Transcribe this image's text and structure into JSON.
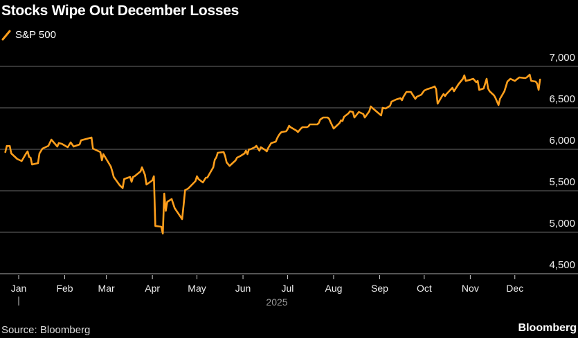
{
  "header": {
    "title": "Stocks Wipe Out December Losses"
  },
  "footer": {
    "source": "Source: Bloomberg",
    "brand": "Bloomberg"
  },
  "colors": {
    "series": "#FF9F1C",
    "grid": "#555555",
    "background": "#000000"
  },
  "chart_data": {
    "type": "line",
    "title": "Stocks Wipe Out December Losses",
    "legend": {
      "entries": [
        "S&P 500"
      ],
      "placement": "top-left"
    },
    "ylim": [
      4500,
      7000
    ],
    "yticks": [
      4500,
      5000,
      5500,
      6000,
      6500,
      7000
    ],
    "ytick_labels": [
      "4,500",
      "5,000",
      "5,500",
      "6,000",
      "6,500",
      "7,000"
    ],
    "xtick_labels": [
      "Jan",
      "Feb",
      "Mar",
      "Apr",
      "May",
      "Jun",
      "Jul",
      "Aug",
      "Sep",
      "Oct",
      "Nov",
      "Dec"
    ],
    "xticks": [
      "2025-01-01",
      "2025-02-01",
      "2025-03-01",
      "2025-04-01",
      "2025-05-01",
      "2025-06-01",
      "2025-07-01",
      "2025-08-01",
      "2025-09-01",
      "2025-10-01",
      "2025-11-01",
      "2025-12-01"
    ],
    "year_label": "2025",
    "grid": true,
    "series": [
      {
        "name": "S&P 500",
        "points": [
          [
            "2024-12-23",
            5967
          ],
          [
            "2024-12-24",
            6040
          ],
          [
            "2024-12-26",
            6040
          ],
          [
            "2024-12-27",
            5950
          ],
          [
            "2024-12-31",
            5883
          ],
          [
            "2025-01-03",
            5858
          ],
          [
            "2025-01-06",
            5950
          ],
          [
            "2025-01-07",
            5975
          ],
          [
            "2025-01-08",
            5908
          ],
          [
            "2025-01-09",
            5900
          ],
          [
            "2025-01-10",
            5817
          ],
          [
            "2025-01-14",
            5833
          ],
          [
            "2025-01-15",
            5950
          ],
          [
            "2025-01-17",
            6008
          ],
          [
            "2025-01-21",
            6042
          ],
          [
            "2025-01-23",
            6117
          ],
          [
            "2025-01-27",
            6033
          ],
          [
            "2025-01-28",
            6075
          ],
          [
            "2025-01-30",
            6067
          ],
          [
            "2025-02-03",
            6025
          ],
          [
            "2025-02-05",
            6083
          ],
          [
            "2025-02-07",
            6033
          ],
          [
            "2025-02-11",
            6058
          ],
          [
            "2025-02-12",
            6108
          ],
          [
            "2025-02-19",
            6142
          ],
          [
            "2025-02-20",
            6008
          ],
          [
            "2025-02-25",
            5967
          ],
          [
            "2025-02-26",
            5867
          ],
          [
            "2025-02-27",
            5942
          ],
          [
            "2025-03-04",
            5792
          ],
          [
            "2025-03-05",
            5733
          ],
          [
            "2025-03-06",
            5667
          ],
          [
            "2025-03-10",
            5567
          ],
          [
            "2025-03-12",
            5533
          ],
          [
            "2025-03-13",
            5642
          ],
          [
            "2025-03-17",
            5667
          ],
          [
            "2025-03-18",
            5608
          ],
          [
            "2025-03-19",
            5667
          ],
          [
            "2025-03-20",
            5675
          ],
          [
            "2025-03-24",
            5733
          ],
          [
            "2025-03-25",
            5783
          ],
          [
            "2025-03-27",
            5692
          ],
          [
            "2025-03-28",
            5575
          ],
          [
            "2025-04-01",
            5625
          ],
          [
            "2025-04-02",
            5675
          ],
          [
            "2025-04-03",
            5075
          ],
          [
            "2025-04-07",
            5067
          ],
          [
            "2025-04-08",
            4983
          ],
          [
            "2025-04-09",
            5467
          ],
          [
            "2025-04-10",
            5258
          ],
          [
            "2025-04-11",
            5367
          ],
          [
            "2025-04-14",
            5400
          ],
          [
            "2025-04-16",
            5292
          ],
          [
            "2025-04-21",
            5158
          ],
          [
            "2025-04-22",
            5325
          ],
          [
            "2025-04-23",
            5508
          ],
          [
            "2025-04-25",
            5525
          ],
          [
            "2025-04-30",
            5617
          ],
          [
            "2025-05-01",
            5675
          ],
          [
            "2025-05-02",
            5642
          ],
          [
            "2025-05-05",
            5600
          ],
          [
            "2025-05-07",
            5658
          ],
          [
            "2025-05-08",
            5658
          ],
          [
            "2025-05-12",
            5783
          ],
          [
            "2025-05-13",
            5875
          ],
          [
            "2025-05-14",
            5900
          ],
          [
            "2025-05-15",
            5958
          ],
          [
            "2025-05-19",
            5967
          ],
          [
            "2025-05-20",
            5917
          ],
          [
            "2025-05-21",
            5842
          ],
          [
            "2025-05-23",
            5800
          ],
          [
            "2025-05-27",
            5867
          ],
          [
            "2025-05-28",
            5900
          ],
          [
            "2025-05-30",
            5917
          ],
          [
            "2025-06-02",
            5950
          ],
          [
            "2025-06-03",
            5983
          ],
          [
            "2025-06-04",
            5942
          ],
          [
            "2025-06-05",
            6000
          ],
          [
            "2025-06-06",
            6000
          ],
          [
            "2025-06-09",
            6025
          ],
          [
            "2025-06-10",
            6042
          ],
          [
            "2025-06-12",
            5983
          ],
          [
            "2025-06-13",
            6025
          ],
          [
            "2025-06-16",
            5992
          ],
          [
            "2025-06-17",
            5975
          ],
          [
            "2025-06-18",
            6017
          ],
          [
            "2025-06-20",
            6075
          ],
          [
            "2025-06-23",
            6092
          ],
          [
            "2025-06-24",
            6133
          ],
          [
            "2025-06-25",
            6167
          ],
          [
            "2025-06-26",
            6192
          ],
          [
            "2025-06-27",
            6208
          ],
          [
            "2025-06-30",
            6217
          ],
          [
            "2025-07-01",
            6242
          ],
          [
            "2025-07-02",
            6283
          ],
          [
            "2025-07-03",
            6267
          ],
          [
            "2025-07-07",
            6225
          ],
          [
            "2025-07-08",
            6208
          ],
          [
            "2025-07-10",
            6250
          ],
          [
            "2025-07-11",
            6267
          ],
          [
            "2025-07-14",
            6267
          ],
          [
            "2025-07-15",
            6275
          ],
          [
            "2025-07-16",
            6300
          ],
          [
            "2025-07-18",
            6300
          ],
          [
            "2025-07-21",
            6300
          ],
          [
            "2025-07-22",
            6317
          ],
          [
            "2025-07-23",
            6358
          ],
          [
            "2025-07-25",
            6383
          ],
          [
            "2025-07-28",
            6383
          ],
          [
            "2025-07-29",
            6367
          ],
          [
            "2025-07-30",
            6325
          ],
          [
            "2025-08-01",
            6250
          ],
          [
            "2025-08-04",
            6300
          ],
          [
            "2025-08-05",
            6317
          ],
          [
            "2025-08-06",
            6350
          ],
          [
            "2025-08-07",
            6342
          ],
          [
            "2025-08-08",
            6392
          ],
          [
            "2025-08-11",
            6433
          ],
          [
            "2025-08-12",
            6458
          ],
          [
            "2025-08-14",
            6450
          ],
          [
            "2025-08-15",
            6383
          ],
          [
            "2025-08-18",
            6450
          ],
          [
            "2025-08-21",
            6425
          ],
          [
            "2025-08-22",
            6383
          ],
          [
            "2025-08-25",
            6458
          ],
          [
            "2025-08-26",
            6517
          ],
          [
            "2025-08-27",
            6500
          ],
          [
            "2025-09-02",
            6408
          ],
          [
            "2025-09-03",
            6500
          ],
          [
            "2025-09-05",
            6492
          ],
          [
            "2025-09-08",
            6525
          ],
          [
            "2025-09-09",
            6575
          ],
          [
            "2025-09-12",
            6600
          ],
          [
            "2025-09-15",
            6617
          ],
          [
            "2025-09-16",
            6592
          ],
          [
            "2025-09-17",
            6633
          ],
          [
            "2025-09-19",
            6692
          ],
          [
            "2025-09-22",
            6692
          ],
          [
            "2025-09-25",
            6608
          ],
          [
            "2025-09-26",
            6633
          ],
          [
            "2025-09-29",
            6658
          ],
          [
            "2025-10-01",
            6708
          ],
          [
            "2025-10-03",
            6725
          ],
          [
            "2025-10-06",
            6742
          ],
          [
            "2025-10-08",
            6758
          ],
          [
            "2025-10-09",
            6725
          ],
          [
            "2025-10-10",
            6550
          ],
          [
            "2025-10-13",
            6642
          ],
          [
            "2025-10-14",
            6667
          ],
          [
            "2025-10-15",
            6642
          ],
          [
            "2025-10-16",
            6667
          ],
          [
            "2025-10-20",
            6742
          ],
          [
            "2025-10-21",
            6700
          ],
          [
            "2025-10-24",
            6783
          ],
          [
            "2025-10-27",
            6850
          ],
          [
            "2025-10-28",
            6892
          ],
          [
            "2025-10-29",
            6825
          ],
          [
            "2025-10-31",
            6833
          ],
          [
            "2025-11-03",
            6850
          ],
          [
            "2025-11-05",
            6808
          ],
          [
            "2025-11-06",
            6825
          ],
          [
            "2025-11-07",
            6717
          ],
          [
            "2025-11-10",
            6733
          ],
          [
            "2025-11-12",
            6850
          ],
          [
            "2025-11-13",
            6733
          ],
          [
            "2025-11-14",
            6700
          ],
          [
            "2025-11-17",
            6650
          ],
          [
            "2025-11-18",
            6617
          ],
          [
            "2025-11-20",
            6533
          ],
          [
            "2025-11-21",
            6608
          ],
          [
            "2025-11-24",
            6700
          ],
          [
            "2025-11-26",
            6817
          ],
          [
            "2025-11-28",
            6850
          ],
          [
            "2025-12-01",
            6825
          ],
          [
            "2025-12-04",
            6867
          ],
          [
            "2025-12-08",
            6858
          ],
          [
            "2025-12-09",
            6867
          ],
          [
            "2025-12-11",
            6900
          ],
          [
            "2025-12-12",
            6825
          ],
          [
            "2025-12-15",
            6817
          ],
          [
            "2025-12-16",
            6792
          ],
          [
            "2025-12-17",
            6717
          ],
          [
            "2025-12-18",
            6842
          ]
        ]
      }
    ]
  }
}
